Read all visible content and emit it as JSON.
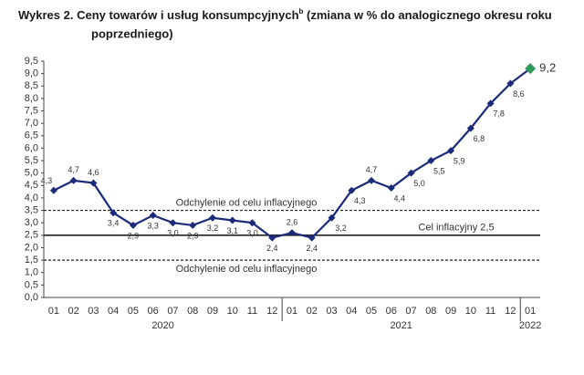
{
  "chart_data": {
    "type": "line",
    "title": "Wykres 2. Ceny towarów i usług konsumpcyjnych",
    "title_superscript": "b",
    "title_rest": " (zmiana w % do analogicznego okresu roku",
    "title_line2": "poprzedniego)",
    "groups": [
      {
        "label": "2020",
        "categories": [
          "01",
          "02",
          "03",
          "04",
          "05",
          "06",
          "07",
          "08",
          "09",
          "10",
          "11",
          "12"
        ]
      },
      {
        "label": "2021",
        "categories": [
          "01",
          "02",
          "03",
          "04",
          "05",
          "06",
          "07",
          "08",
          "09",
          "10",
          "11",
          "12"
        ]
      },
      {
        "label": "2022",
        "categories": [
          "01"
        ]
      }
    ],
    "series": [
      {
        "color": "#1b2a7a",
        "highlight_color": "#2e9a5a",
        "values": [
          4.3,
          4.7,
          4.6,
          3.4,
          2.9,
          3.3,
          3.0,
          2.9,
          3.2,
          3.1,
          3.0,
          2.4,
          2.6,
          2.4,
          3.2,
          4.3,
          4.7,
          4.4,
          5.0,
          5.5,
          5.9,
          6.8,
          7.8,
          8.6,
          9.2
        ],
        "value_labels": [
          "4,3",
          "4,7",
          "4,6",
          "3,4",
          "2,9",
          "3,3",
          "3,0",
          "2,9",
          "3,2",
          "3,1",
          "3,0",
          "2,4",
          "2,6",
          "2,4",
          "3,2",
          "4,3",
          "4,7",
          "4,4",
          "5,0",
          "5,5",
          "5,9",
          "6,8",
          "7,8",
          "8,6",
          "9,2"
        ]
      }
    ],
    "ylim": [
      0,
      9.5
    ],
    "yticks": [
      {
        "value": 0,
        "label": "0,0"
      },
      {
        "value": 0.5,
        "label": "0,5"
      },
      {
        "value": 1,
        "label": "1,0"
      },
      {
        "value": 1.5,
        "label": "1,5"
      },
      {
        "value": 2,
        "label": "2,0"
      },
      {
        "value": 2.5,
        "label": "2,5"
      },
      {
        "value": 3,
        "label": "3,0"
      },
      {
        "value": 3.5,
        "label": "3,5"
      },
      {
        "value": 4,
        "label": "4,0"
      },
      {
        "value": 4.5,
        "label": "4,5"
      },
      {
        "value": 5,
        "label": "5,0"
      },
      {
        "value": 5.5,
        "label": "5,5"
      },
      {
        "value": 6,
        "label": "6,0"
      },
      {
        "value": 6.5,
        "label": "6,5"
      },
      {
        "value": 7,
        "label": "7,0"
      },
      {
        "value": 7.5,
        "label": "7,5"
      },
      {
        "value": 8,
        "label": "8,0"
      },
      {
        "value": 8.5,
        "label": "8,5"
      },
      {
        "value": 9,
        "label": "9,0"
      },
      {
        "value": 9.5,
        "label": "9,5"
      }
    ],
    "reference_lines": [
      {
        "value": 3.5,
        "label": "Odchylenie od celu inflacyjnego",
        "style": "dashed"
      },
      {
        "value": 2.5,
        "label": "Cel inflacyjny 2,5",
        "style": "solid"
      },
      {
        "value": 1.5,
        "label": "Odchylenie od celu inflacyjnego",
        "style": "dashed"
      }
    ]
  }
}
